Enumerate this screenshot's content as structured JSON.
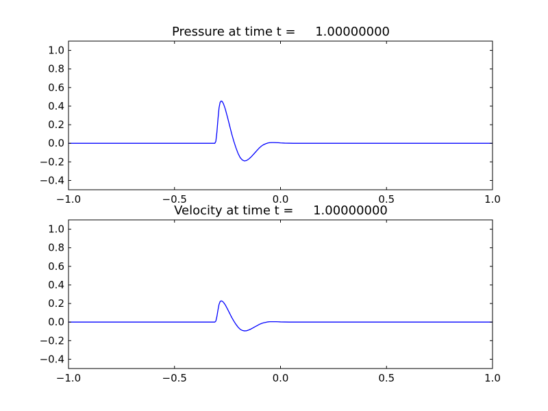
{
  "chart_data": [
    {
      "type": "line",
      "title": "Pressure at time t =     1.00000000",
      "xlabel": "",
      "ylabel": "",
      "xlim": [
        -1.0,
        1.0
      ],
      "ylim": [
        -0.5,
        1.1
      ],
      "xticks": [
        -1.0,
        -0.5,
        0.0,
        0.5,
        1.0
      ],
      "xtick_labels": [
        "−1.0",
        "−0.5",
        "0.0",
        "0.5",
        "1.0"
      ],
      "yticks": [
        -0.4,
        -0.2,
        0.0,
        0.2,
        0.4,
        0.6,
        0.8,
        1.0
      ],
      "ytick_labels": [
        "−0.4",
        "−0.2",
        "0.0",
        "0.2",
        "0.4",
        "0.6",
        "0.8",
        "1.0"
      ],
      "grid": false,
      "series": [
        {
          "color": "#0000ff",
          "x": [
            -1.0,
            -0.4,
            -0.31,
            -0.305,
            -0.3,
            -0.295,
            -0.29,
            -0.285,
            -0.28,
            -0.275,
            -0.27,
            -0.265,
            -0.26,
            -0.25,
            -0.24,
            -0.23,
            -0.22,
            -0.21,
            -0.2,
            -0.19,
            -0.18,
            -0.17,
            -0.16,
            -0.15,
            -0.14,
            -0.13,
            -0.12,
            -0.11,
            -0.1,
            -0.09,
            -0.08,
            -0.07,
            -0.06,
            -0.05,
            -0.04,
            -0.03,
            -0.02,
            -0.01,
            0.0,
            0.02,
            0.04,
            0.06,
            0.08,
            0.1,
            0.2,
            0.5,
            1.0
          ],
          "y": [
            0.0,
            0.0,
            0.0,
            0.02,
            0.12,
            0.26,
            0.38,
            0.44,
            0.455,
            0.45,
            0.43,
            0.4,
            0.365,
            0.28,
            0.19,
            0.1,
            0.02,
            -0.05,
            -0.11,
            -0.155,
            -0.18,
            -0.19,
            -0.185,
            -0.17,
            -0.15,
            -0.125,
            -0.1,
            -0.075,
            -0.05,
            -0.03,
            -0.015,
            -0.005,
            0.003,
            0.007,
            0.008,
            0.008,
            0.007,
            0.006,
            0.004,
            0.002,
            0.001,
            0.0,
            0.0,
            0.0,
            0.0,
            0.0,
            0.0
          ]
        }
      ]
    },
    {
      "type": "line",
      "title": "Velocity at time t =     1.00000000",
      "xlabel": "",
      "ylabel": "",
      "xlim": [
        -1.0,
        1.0
      ],
      "ylim": [
        -0.5,
        1.1
      ],
      "xticks": [
        -1.0,
        -0.5,
        0.0,
        0.5,
        1.0
      ],
      "xtick_labels": [
        "−1.0",
        "−0.5",
        "0.0",
        "0.5",
        "1.0"
      ],
      "yticks": [
        -0.4,
        -0.2,
        0.0,
        0.2,
        0.4,
        0.6,
        0.8,
        1.0
      ],
      "ytick_labels": [
        "−0.4",
        "−0.2",
        "0.0",
        "0.2",
        "0.4",
        "0.6",
        "0.8",
        "1.0"
      ],
      "grid": false,
      "series": [
        {
          "color": "#0000ff",
          "x": [
            -1.0,
            -0.4,
            -0.31,
            -0.305,
            -0.3,
            -0.295,
            -0.29,
            -0.285,
            -0.28,
            -0.275,
            -0.27,
            -0.265,
            -0.26,
            -0.25,
            -0.24,
            -0.23,
            -0.22,
            -0.21,
            -0.2,
            -0.19,
            -0.18,
            -0.17,
            -0.16,
            -0.15,
            -0.14,
            -0.13,
            -0.12,
            -0.11,
            -0.1,
            -0.09,
            -0.08,
            -0.07,
            -0.06,
            -0.05,
            -0.04,
            -0.03,
            -0.02,
            -0.01,
            0.0,
            0.02,
            0.04,
            0.06,
            0.08,
            0.1,
            0.2,
            0.5,
            1.0
          ],
          "y": [
            0.0,
            0.0,
            0.0,
            0.01,
            0.06,
            0.13,
            0.19,
            0.22,
            0.228,
            0.225,
            0.215,
            0.2,
            0.183,
            0.14,
            0.095,
            0.05,
            0.01,
            -0.025,
            -0.055,
            -0.078,
            -0.09,
            -0.095,
            -0.093,
            -0.085,
            -0.075,
            -0.063,
            -0.05,
            -0.038,
            -0.025,
            -0.015,
            -0.008,
            -0.003,
            0.002,
            0.004,
            0.004,
            0.004,
            0.004,
            0.003,
            0.002,
            0.001,
            0.0,
            0.0,
            0.0,
            0.0,
            0.0,
            0.0,
            0.0
          ]
        }
      ]
    }
  ]
}
